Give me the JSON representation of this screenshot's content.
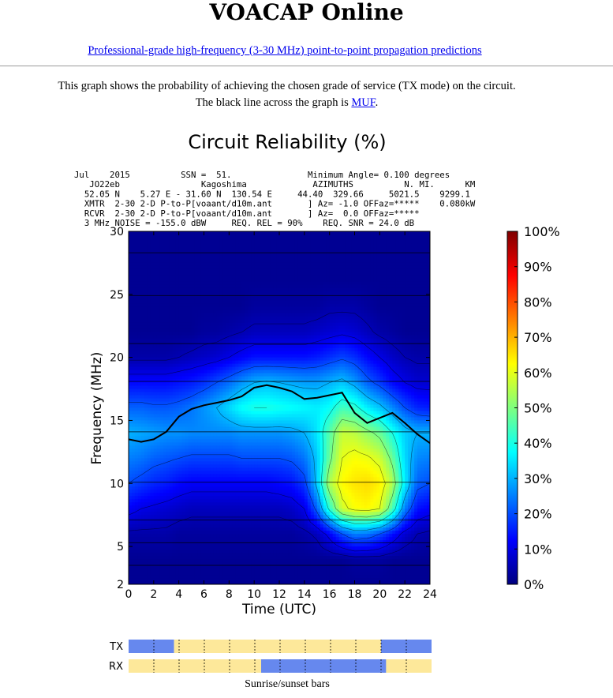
{
  "page": {
    "site_title": "VOACAP Online",
    "subtitle_link": "Professional-grade high-frequency (3-30 MHz) point-to-point propagation predictions",
    "description_line1": "This graph shows the probability of achieving the chosen grade of service (TX mode) on the circuit.",
    "description_line2_prefix": "The black line across the graph is ",
    "description_line2_link": "MUF",
    "description_line2_suffix": "."
  },
  "colors": {
    "link": "#0000ee",
    "background_min": "#00007f",
    "colormap": [
      "#00007f",
      "#0000ff",
      "#007fff",
      "#00ffff",
      "#7fff7f",
      "#ffff00",
      "#ff7f00",
      "#ff0000",
      "#7f0000"
    ],
    "tx_rx_night": "#6688ee",
    "tx_rx_day": "#fde89a"
  },
  "header_lines": [
    "Jul    2015          SSN =  51.               Minimum Angle= 0.100 degrees",
    "   JO22eb                Kagoshima             AZIMUTHS          N. MI.      KM",
    "  52.05 N    5.27 E - 31.60 N  130.54 E     44.40  329.66     5021.5    9299.1",
    "  XMTR  2-30 2-D P-to-P[voaant/d10m.ant       ] Az= -1.0 OFFaz=*****    0.080kW",
    "  RCVR  2-30 2-D P-to-P[voaant/d10m.ant       ] Az=  0.0 OFFaz=*****",
    "  3 MHz NOISE = -155.0 dBW     REQ. REL = 90%    REQ. SNR = 24.0 dB"
  ],
  "chart_data": {
    "type": "heatmap",
    "title": "Circuit Reliability (%)",
    "xlabel": "Time (UTC)",
    "ylabel": "Frequency (MHz)",
    "xlim": [
      0,
      24
    ],
    "ylim": [
      2,
      30
    ],
    "x_ticks": [
      0,
      2,
      4,
      6,
      8,
      10,
      12,
      14,
      16,
      18,
      20,
      22,
      24
    ],
    "y_ticks": [
      2,
      5,
      10,
      15,
      20,
      25,
      30
    ],
    "colorbar_ticks": [
      "0%",
      "10%",
      "20%",
      "30%",
      "40%",
      "50%",
      "60%",
      "70%",
      "80%",
      "90%",
      "100%"
    ],
    "colorbar_range": [
      0,
      100
    ],
    "frequency_lines_mhz": [
      3.5,
      5.3,
      7.1,
      10.1,
      14.1,
      18.1,
      21.1,
      24.9,
      28.3
    ],
    "reliability_hours": [
      0,
      1,
      2,
      3,
      4,
      5,
      6,
      7,
      8,
      9,
      10,
      11,
      12,
      13,
      14,
      15,
      16,
      17,
      18,
      19,
      20,
      21,
      22,
      23,
      24
    ],
    "reliability_freqs_mhz": [
      2,
      4,
      6,
      8,
      10,
      12,
      14,
      16,
      18,
      20,
      22,
      24,
      26,
      28,
      30
    ],
    "reliability_percent": [
      [
        2,
        2,
        2,
        2,
        2,
        2,
        2,
        2,
        2,
        2,
        2,
        2,
        2,
        2,
        2,
        2,
        2,
        2,
        2,
        2,
        2,
        2,
        2,
        2,
        2
      ],
      [
        2,
        2,
        2,
        2,
        2,
        2,
        2,
        2,
        2,
        2,
        2,
        2,
        2,
        2,
        2,
        2,
        2,
        2,
        3,
        3,
        3,
        2,
        2,
        2,
        2
      ],
      [
        4,
        4,
        4,
        4,
        3,
        3,
        3,
        3,
        3,
        3,
        3,
        3,
        3,
        3,
        4,
        6,
        12,
        20,
        25,
        24,
        20,
        14,
        8,
        5,
        4
      ],
      [
        12,
        10,
        9,
        8,
        7,
        6,
        6,
        6,
        6,
        6,
        6,
        6,
        6,
        7,
        10,
        22,
        42,
        58,
        62,
        63,
        60,
        45,
        25,
        14,
        12
      ],
      [
        20,
        18,
        16,
        15,
        13,
        12,
        12,
        12,
        12,
        12,
        12,
        12,
        13,
        14,
        18,
        32,
        55,
        63,
        65,
        66,
        64,
        55,
        36,
        22,
        20
      ],
      [
        25,
        24,
        22,
        21,
        20,
        19,
        19,
        19,
        19,
        20,
        20,
        20,
        20,
        21,
        24,
        32,
        48,
        60,
        62,
        61,
        58,
        48,
        34,
        26,
        25
      ],
      [
        30,
        29,
        28,
        27,
        27,
        26,
        26,
        26,
        26,
        27,
        27,
        27,
        27,
        28,
        30,
        35,
        46,
        57,
        56,
        52,
        48,
        40,
        33,
        30,
        30
      ],
      [
        22,
        22,
        21,
        21,
        22,
        24,
        27,
        30,
        34,
        38,
        40,
        40,
        39,
        38,
        37,
        36,
        38,
        44,
        42,
        36,
        32,
        26,
        20,
        16,
        15
      ],
      [
        13,
        13,
        13,
        13,
        14,
        15,
        17,
        20,
        23,
        27,
        30,
        31,
        30,
        29,
        28,
        28,
        30,
        32,
        28,
        22,
        18,
        13,
        10,
        8,
        8
      ],
      [
        4,
        4,
        4,
        4,
        5,
        6,
        7,
        8,
        10,
        12,
        14,
        14,
        14,
        14,
        14,
        15,
        17,
        19,
        17,
        13,
        10,
        7,
        5,
        4,
        4
      ],
      [
        2,
        2,
        2,
        2,
        2,
        2,
        3,
        3,
        4,
        5,
        6,
        6,
        6,
        6,
        6,
        7,
        8,
        9,
        8,
        6,
        4,
        3,
        2,
        2,
        2
      ],
      [
        2,
        2,
        2,
        2,
        2,
        2,
        2,
        2,
        2,
        2,
        3,
        3,
        3,
        3,
        3,
        3,
        4,
        4,
        4,
        3,
        2,
        2,
        2,
        2,
        2
      ],
      [
        2,
        2,
        2,
        2,
        2,
        2,
        2,
        2,
        2,
        2,
        2,
        2,
        2,
        2,
        2,
        2,
        2,
        2,
        2,
        2,
        2,
        2,
        2,
        2,
        2
      ],
      [
        2,
        2,
        2,
        2,
        2,
        2,
        2,
        2,
        2,
        2,
        2,
        2,
        2,
        2,
        2,
        2,
        2,
        2,
        2,
        2,
        2,
        2,
        2,
        2,
        2
      ],
      [
        2,
        2,
        2,
        2,
        2,
        2,
        2,
        2,
        2,
        2,
        2,
        2,
        2,
        2,
        2,
        2,
        2,
        2,
        2,
        2,
        2,
        2,
        2,
        2,
        2
      ]
    ],
    "muf_hours": [
      0,
      1,
      2,
      3,
      4,
      5,
      6,
      7,
      8,
      9,
      10,
      11,
      12,
      13,
      14,
      15,
      16,
      17,
      18,
      19,
      20,
      21,
      22,
      23,
      24
    ],
    "muf_mhz": [
      13.5,
      13.3,
      13.5,
      14.1,
      15.3,
      15.9,
      16.2,
      16.4,
      16.6,
      16.9,
      17.6,
      17.8,
      17.6,
      17.3,
      16.7,
      16.8,
      17.0,
      17.2,
      15.6,
      14.8,
      15.2,
      15.6,
      14.8,
      13.9,
      13.2
    ],
    "muf_label": "MUF"
  },
  "sunrise_bars": {
    "caption": "Sunrise/sunset bars",
    "tx_label": "TX",
    "rx_label": "RX",
    "tx_day_utc": [
      3.6,
      20.0
    ],
    "rx_night_utc": [
      10.5,
      20.4
    ],
    "tick_hours": [
      2,
      4,
      6,
      8,
      10,
      12,
      14,
      16,
      18,
      20,
      22
    ]
  }
}
